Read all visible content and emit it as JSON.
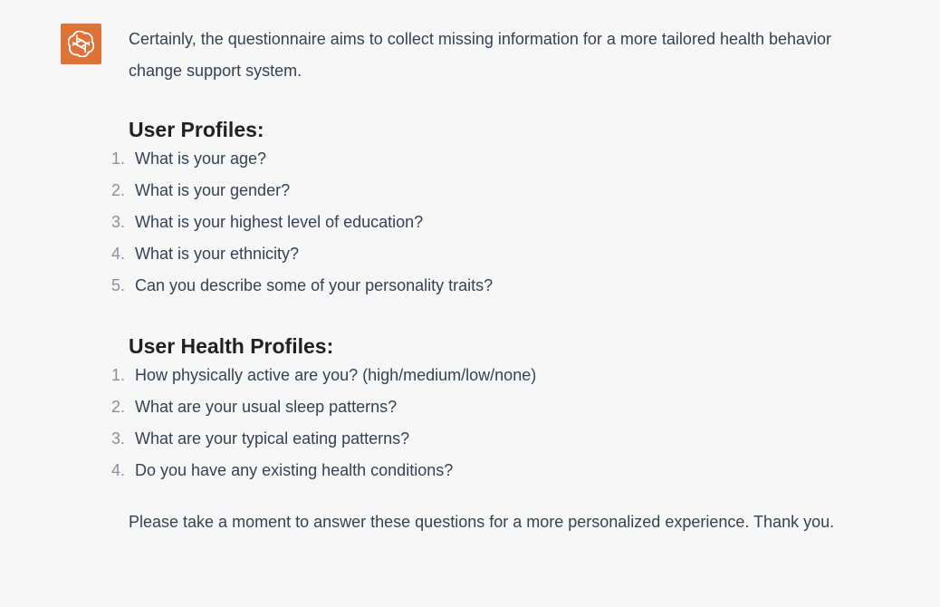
{
  "colors": {
    "avatar_bg": "#df7236",
    "background": "#f7f7f8"
  },
  "avatar": {
    "icon": "openai-logo-icon"
  },
  "message": {
    "intro": "Certainly, the questionnaire aims to collect missing information for a more tailored health behavior change support system.",
    "section1": {
      "title": "User Profiles:",
      "items": [
        {
          "num": "1.",
          "text": "What is your age?"
        },
        {
          "num": "2.",
          "text": "What is your gender?"
        },
        {
          "num": "3.",
          "text": "What is your highest level of education?"
        },
        {
          "num": "4.",
          "text": "What is your ethnicity?"
        },
        {
          "num": "5.",
          "text": "Can you describe some of your personality traits?"
        }
      ]
    },
    "section2": {
      "title": "User Health Profiles:",
      "items": [
        {
          "num": "1.",
          "text": "How physically active are you? (high/medium/low/none)"
        },
        {
          "num": "2.",
          "text": "What are your usual sleep patterns?"
        },
        {
          "num": "3.",
          "text": "What are your typical eating patterns?"
        },
        {
          "num": "4.",
          "text": "Do you have any existing health conditions?"
        }
      ]
    },
    "closing": "Please take a moment to answer these questions for a more personalized experience. Thank you."
  }
}
